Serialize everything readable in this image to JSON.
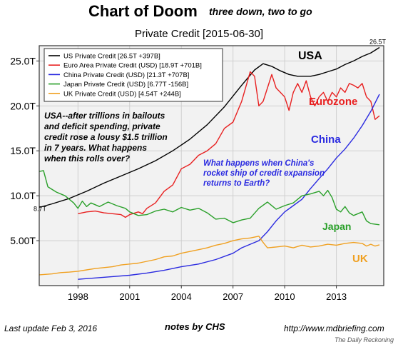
{
  "header": {
    "title": "Chart of Doom",
    "subtitle": "three down, two to go"
  },
  "footer": {
    "update": "Last update Feb  3, 2016",
    "notes": "notes by CHS",
    "url": "http://www.mdbriefing.com",
    "credit": "The Daily Reckoning"
  },
  "chart_data": {
    "type": "line",
    "title": "Private Credit  [2015-06-30]",
    "xlabel": "",
    "ylabel": "",
    "xlim": [
      1995.75,
      2015.75
    ],
    "ylim": [
      0,
      26.7
    ],
    "x_ticks": [
      1998,
      2001,
      2004,
      2007,
      2010,
      2013
    ],
    "y_ticks": [
      {
        "value": 5,
        "label": "5.00T"
      },
      {
        "value": 10,
        "label": "10.0T"
      },
      {
        "value": 15,
        "label": "15.0T"
      },
      {
        "value": 20,
        "label": "20.0T"
      },
      {
        "value": 25,
        "label": "25.0T"
      }
    ],
    "grid": true,
    "legend_position": "top-left",
    "series": [
      {
        "name": "US Private Credit [26.5T +397B]",
        "label": "USA",
        "color": "#000000",
        "points": [
          [
            1995.75,
            8.7
          ],
          [
            1996.5,
            9.1
          ],
          [
            1997.5,
            9.7
          ],
          [
            1998.5,
            10.5
          ],
          [
            1999.5,
            11.4
          ],
          [
            2000.5,
            12.2
          ],
          [
            2001.5,
            13.0
          ],
          [
            2002.5,
            13.9
          ],
          [
            2003.5,
            15.0
          ],
          [
            2004.5,
            16.3
          ],
          [
            2005.5,
            17.9
          ],
          [
            2006.5,
            19.9
          ],
          [
            2007.5,
            22.3
          ],
          [
            2008.25,
            24.0
          ],
          [
            2008.75,
            24.7
          ],
          [
            2009.25,
            24.4
          ],
          [
            2009.75,
            23.9
          ],
          [
            2010.25,
            23.5
          ],
          [
            2010.75,
            23.3
          ],
          [
            2011.5,
            23.3
          ],
          [
            2012.0,
            23.5
          ],
          [
            2012.5,
            23.8
          ],
          [
            2013.0,
            24.1
          ],
          [
            2013.5,
            24.6
          ],
          [
            2014.0,
            25.0
          ],
          [
            2014.5,
            25.5
          ],
          [
            2015.0,
            25.9
          ],
          [
            2015.5,
            26.5
          ]
        ]
      },
      {
        "name": "Euro Area Private Credit (USD) [18.9T +701B]",
        "label": "Eurozone",
        "color": "#e82020",
        "points": [
          [
            1998.0,
            8.0
          ],
          [
            1998.5,
            8.2
          ],
          [
            1999.0,
            8.3
          ],
          [
            1999.5,
            8.1
          ],
          [
            2000.0,
            8.0
          ],
          [
            2000.5,
            7.9
          ],
          [
            2000.75,
            7.6
          ],
          [
            2001.0,
            7.9
          ],
          [
            2001.5,
            8.2
          ],
          [
            2001.75,
            8.0
          ],
          [
            2002.0,
            8.6
          ],
          [
            2002.5,
            9.2
          ],
          [
            2003.0,
            10.5
          ],
          [
            2003.5,
            11.2
          ],
          [
            2004.0,
            13.0
          ],
          [
            2004.5,
            13.5
          ],
          [
            2005.0,
            14.5
          ],
          [
            2005.5,
            15.0
          ],
          [
            2006.0,
            15.8
          ],
          [
            2006.5,
            17.5
          ],
          [
            2007.0,
            18.2
          ],
          [
            2007.5,
            20.5
          ],
          [
            2008.0,
            23.8
          ],
          [
            2008.25,
            23.3
          ],
          [
            2008.5,
            20.0
          ],
          [
            2008.75,
            20.5
          ],
          [
            2009.0,
            22.0
          ],
          [
            2009.25,
            23.5
          ],
          [
            2009.5,
            22.0
          ],
          [
            2009.75,
            21.5
          ],
          [
            2010.0,
            21.0
          ],
          [
            2010.25,
            19.5
          ],
          [
            2010.5,
            21.5
          ],
          [
            2010.75,
            22.5
          ],
          [
            2011.0,
            21.5
          ],
          [
            2011.25,
            22.8
          ],
          [
            2011.5,
            21.0
          ],
          [
            2011.75,
            20.0
          ],
          [
            2012.0,
            21.0
          ],
          [
            2012.25,
            21.5
          ],
          [
            2012.5,
            20.5
          ],
          [
            2012.75,
            21.5
          ],
          [
            2013.0,
            21.0
          ],
          [
            2013.25,
            22.0
          ],
          [
            2013.5,
            21.5
          ],
          [
            2013.75,
            22.5
          ],
          [
            2014.0,
            22.3
          ],
          [
            2014.25,
            22.0
          ],
          [
            2014.5,
            22.5
          ],
          [
            2014.75,
            21.0
          ],
          [
            2015.0,
            20.5
          ],
          [
            2015.25,
            18.5
          ],
          [
            2015.5,
            18.9
          ]
        ]
      },
      {
        "name": "China Private Credit (USD) [21.3T +707B]",
        "label": "China",
        "color": "#2a2ae0",
        "points": [
          [
            1998.0,
            0.7
          ],
          [
            1999.0,
            0.85
          ],
          [
            2000.0,
            1.0
          ],
          [
            2001.0,
            1.15
          ],
          [
            2002.0,
            1.4
          ],
          [
            2003.0,
            1.7
          ],
          [
            2004.0,
            2.1
          ],
          [
            2005.0,
            2.4
          ],
          [
            2006.0,
            2.9
          ],
          [
            2007.0,
            3.6
          ],
          [
            2007.5,
            4.2
          ],
          [
            2008.0,
            4.6
          ],
          [
            2008.5,
            5.0
          ],
          [
            2009.0,
            6.0
          ],
          [
            2009.5,
            7.2
          ],
          [
            2010.0,
            8.2
          ],
          [
            2010.5,
            8.9
          ],
          [
            2011.0,
            9.6
          ],
          [
            2011.5,
            10.8
          ],
          [
            2012.0,
            11.9
          ],
          [
            2012.5,
            13.0
          ],
          [
            2013.0,
            14.2
          ],
          [
            2013.5,
            15.2
          ],
          [
            2014.0,
            16.4
          ],
          [
            2014.5,
            17.8
          ],
          [
            2015.0,
            19.4
          ],
          [
            2015.5,
            21.3
          ]
        ]
      },
      {
        "name": "Japan Private Credit (USD) [6.77T -156B]",
        "label": "Japan",
        "color": "#2aa02a",
        "points": [
          [
            1995.75,
            12.7
          ],
          [
            1996.0,
            12.8
          ],
          [
            1996.25,
            11.0
          ],
          [
            1996.75,
            10.4
          ],
          [
            1997.25,
            10.0
          ],
          [
            1997.75,
            9.2
          ],
          [
            1998.0,
            8.6
          ],
          [
            1998.25,
            9.4
          ],
          [
            1998.5,
            8.8
          ],
          [
            1998.75,
            9.2
          ],
          [
            1999.25,
            8.8
          ],
          [
            1999.75,
            9.3
          ],
          [
            2000.25,
            8.9
          ],
          [
            2000.75,
            8.6
          ],
          [
            2001.0,
            8.2
          ],
          [
            2001.5,
            7.8
          ],
          [
            2002.0,
            7.9
          ],
          [
            2002.5,
            8.3
          ],
          [
            2003.0,
            8.5
          ],
          [
            2003.5,
            8.2
          ],
          [
            2004.0,
            8.7
          ],
          [
            2004.5,
            8.4
          ],
          [
            2005.0,
            8.6
          ],
          [
            2005.5,
            8.1
          ],
          [
            2006.0,
            7.4
          ],
          [
            2006.5,
            7.5
          ],
          [
            2007.0,
            7.0
          ],
          [
            2007.5,
            7.3
          ],
          [
            2008.0,
            7.5
          ],
          [
            2008.5,
            8.6
          ],
          [
            2009.0,
            9.3
          ],
          [
            2009.5,
            8.5
          ],
          [
            2010.0,
            8.9
          ],
          [
            2010.5,
            9.2
          ],
          [
            2011.0,
            10.0
          ],
          [
            2011.5,
            10.2
          ],
          [
            2012.0,
            10.5
          ],
          [
            2012.25,
            10.0
          ],
          [
            2012.5,
            10.6
          ],
          [
            2012.75,
            9.8
          ],
          [
            2013.0,
            8.5
          ],
          [
            2013.25,
            8.2
          ],
          [
            2013.5,
            8.8
          ],
          [
            2013.75,
            8.1
          ],
          [
            2014.0,
            7.8
          ],
          [
            2014.5,
            8.2
          ],
          [
            2014.75,
            7.2
          ],
          [
            2015.0,
            6.9
          ],
          [
            2015.5,
            6.77
          ]
        ]
      },
      {
        "name": "UK Private Credit (USD) [4.54T +244B]",
        "label": "UK",
        "color": "#f0a020",
        "points": [
          [
            1995.75,
            1.2
          ],
          [
            1996.5,
            1.3
          ],
          [
            1997.0,
            1.45
          ],
          [
            1997.5,
            1.5
          ],
          [
            1998.0,
            1.6
          ],
          [
            1998.5,
            1.75
          ],
          [
            1999.0,
            1.9
          ],
          [
            1999.5,
            2.0
          ],
          [
            2000.0,
            2.1
          ],
          [
            2000.5,
            2.3
          ],
          [
            2001.0,
            2.4
          ],
          [
            2001.5,
            2.5
          ],
          [
            2002.0,
            2.7
          ],
          [
            2002.5,
            2.9
          ],
          [
            2003.0,
            3.2
          ],
          [
            2003.5,
            3.3
          ],
          [
            2004.0,
            3.6
          ],
          [
            2004.5,
            3.8
          ],
          [
            2005.0,
            4.0
          ],
          [
            2005.5,
            4.2
          ],
          [
            2006.0,
            4.5
          ],
          [
            2006.5,
            4.7
          ],
          [
            2007.0,
            5.0
          ],
          [
            2007.5,
            5.2
          ],
          [
            2008.0,
            5.3
          ],
          [
            2008.5,
            5.5
          ],
          [
            2008.75,
            4.8
          ],
          [
            2009.0,
            4.2
          ],
          [
            2009.5,
            4.3
          ],
          [
            2010.0,
            4.4
          ],
          [
            2010.5,
            4.2
          ],
          [
            2011.0,
            4.5
          ],
          [
            2011.5,
            4.3
          ],
          [
            2012.0,
            4.4
          ],
          [
            2012.5,
            4.6
          ],
          [
            2013.0,
            4.5
          ],
          [
            2013.5,
            4.7
          ],
          [
            2014.0,
            4.8
          ],
          [
            2014.5,
            4.7
          ],
          [
            2014.75,
            4.4
          ],
          [
            2015.0,
            4.6
          ],
          [
            2015.25,
            4.4
          ],
          [
            2015.5,
            4.54
          ]
        ]
      }
    ],
    "end_labels": [
      {
        "text": "26.5T",
        "series": 0,
        "position": "end"
      },
      {
        "text": "8.7T",
        "series": 0,
        "position": "start"
      }
    ],
    "annotations": [
      {
        "lines": [
          "USA--after trillions in bailouts",
          "and deficit spending, private",
          "credit rose a lousy $1.5 trillion",
          "in 7 years. What happens",
          "when this rolls over?"
        ],
        "color": "#000000"
      },
      {
        "lines": [
          "What happens when China's",
          "rocket ship of credit expansion",
          "returns to Earth?"
        ],
        "color": "#2a2ae0"
      }
    ]
  }
}
